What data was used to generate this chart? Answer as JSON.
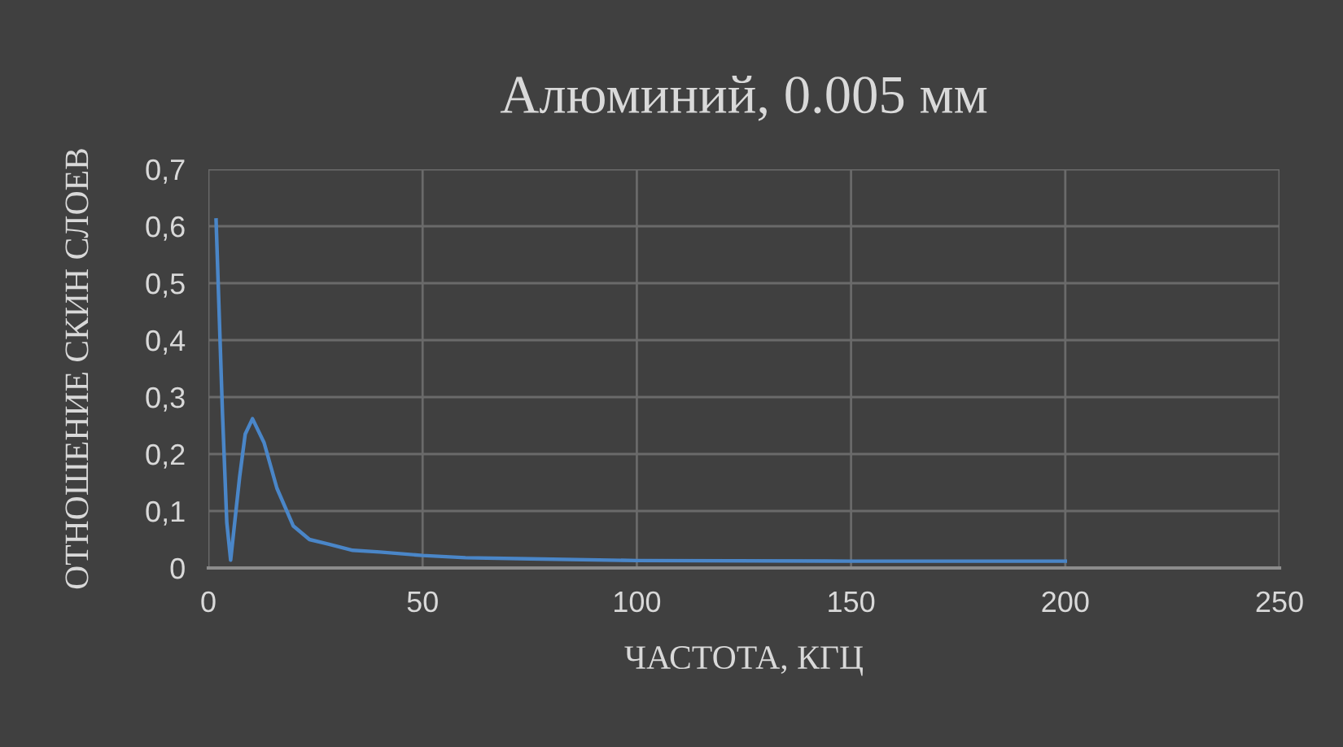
{
  "chart_data": {
    "type": "line",
    "title": "Алюминий, 0.005 мм",
    "xlabel": "ЧАСТОТА, КГЦ",
    "ylabel": "ОТНОШЕНИЕ СКИН СЛОЕВ",
    "series": [
      {
        "color": "#4a86c8",
        "x": [
          1.8,
          3.3,
          4.3,
          5.2,
          7.3,
          8.6,
          10.3,
          13,
          16,
          19.8,
          23.6,
          28,
          33.7,
          40,
          50,
          60,
          75,
          100,
          150,
          200
        ],
        "values": [
          0.611,
          0.27,
          0.08,
          0.014,
          0.16,
          0.235,
          0.262,
          0.22,
          0.14,
          0.074,
          0.05,
          0.042,
          0.031,
          0.028,
          0.022,
          0.018,
          0.016,
          0.013,
          0.012,
          0.012
        ]
      }
    ],
    "xlim": [
      0,
      250
    ],
    "xticks": [
      0,
      50,
      100,
      150,
      200,
      250
    ],
    "ylim": [
      0,
      0.7
    ],
    "yticks": [
      {
        "value": 0,
        "label": "0"
      },
      {
        "value": 0.1,
        "label": "0,1"
      },
      {
        "value": 0.2,
        "label": "0,2"
      },
      {
        "value": 0.3,
        "label": "0,3"
      },
      {
        "value": 0.4,
        "label": "0,4"
      },
      {
        "value": 0.5,
        "label": "0,5"
      },
      {
        "value": 0.6,
        "label": "0,6"
      },
      {
        "value": 0.7,
        "label": "0,7"
      }
    ],
    "grid": true,
    "marker": "none",
    "line_style": "solid"
  }
}
